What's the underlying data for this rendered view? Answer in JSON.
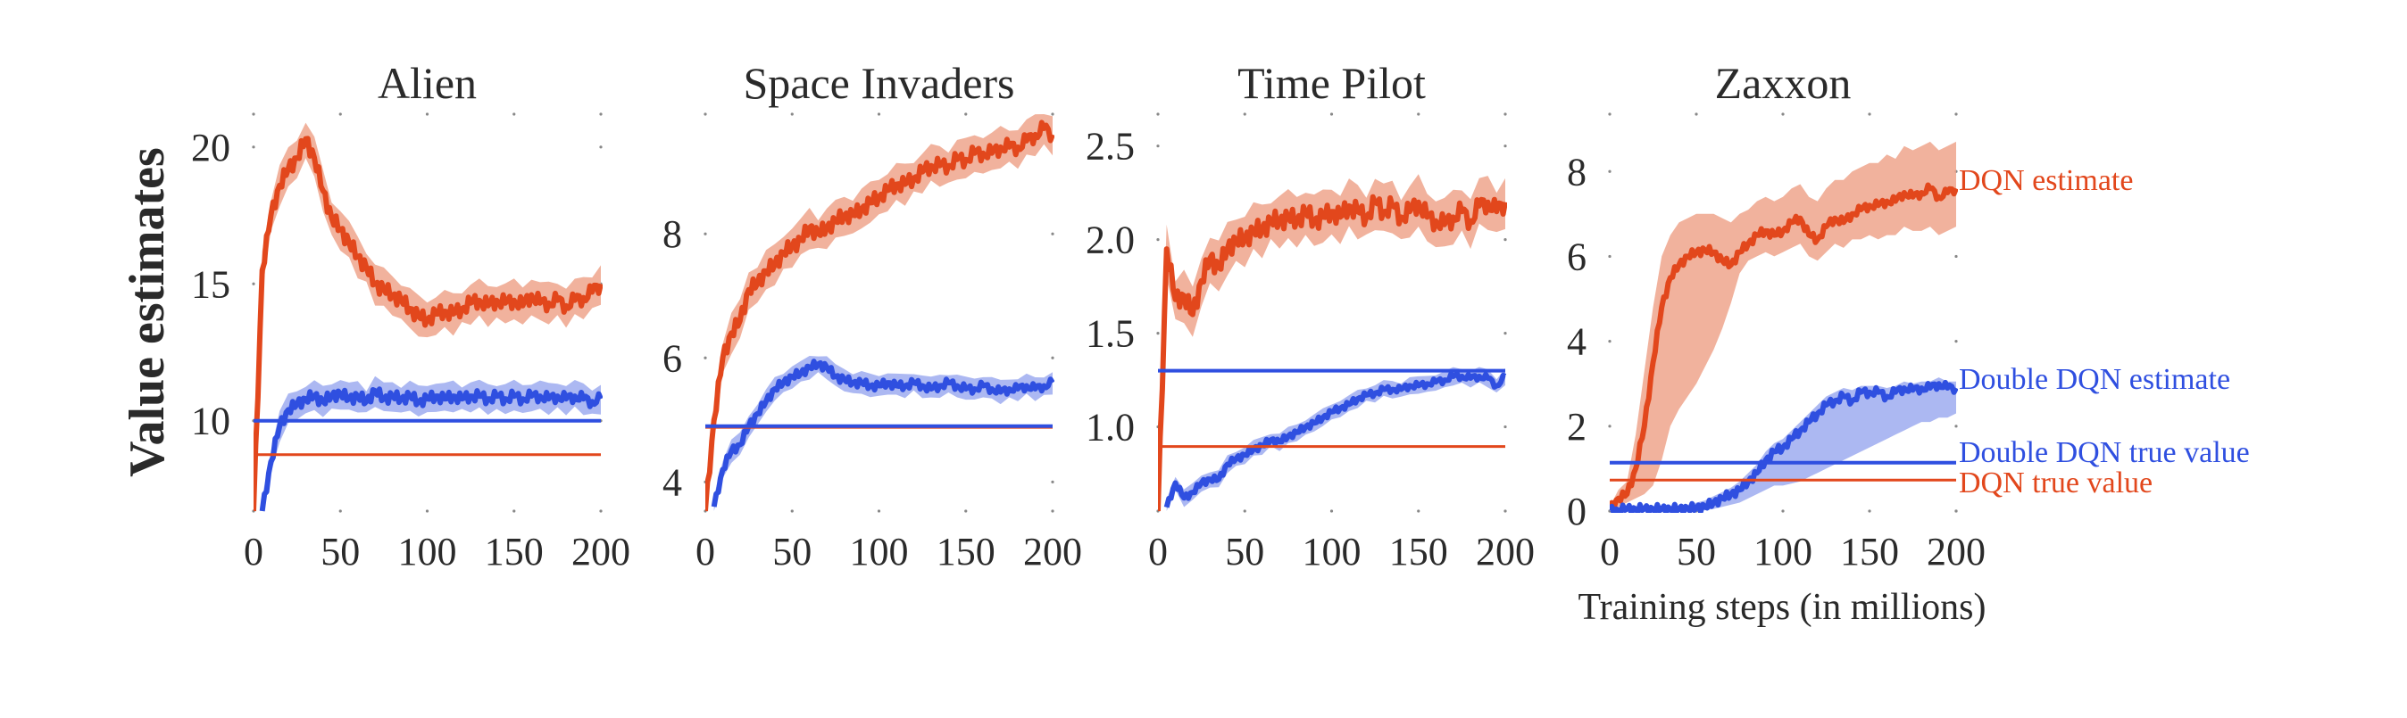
{
  "figure": {
    "ylabel": "Value estimates",
    "xlabel": "Training steps (in millions)"
  },
  "colors": {
    "dqn_line": "#e2471c",
    "dqn_band": "#eea48c",
    "ddqn_line": "#2f4fe0",
    "ddqn_band": "#9eacf0",
    "text": "#2a2a2a",
    "tick_dot": "#888888"
  },
  "legend_labels": {
    "dqn_estimate": "DQN estimate",
    "ddqn_estimate": "Double DQN estimate",
    "ddqn_true": "Double DQN true value",
    "dqn_true": "DQN true value"
  },
  "chart_data": [
    {
      "type": "line",
      "title": "Alien",
      "xlabel": "",
      "ylabel": "Value estimates",
      "xlim": [
        0,
        200
      ],
      "ylim": [
        6.7,
        21.2
      ],
      "xticks": [
        0,
        50,
        100,
        150,
        200
      ],
      "xtick_labels": [
        "0",
        "50",
        "100",
        "150",
        "200"
      ],
      "yticks": [
        10,
        15,
        20
      ],
      "ytick_labels": [
        "10",
        "15",
        "20"
      ],
      "x": [
        0,
        5,
        10,
        15,
        20,
        25,
        30,
        35,
        40,
        45,
        50,
        55,
        60,
        65,
        70,
        75,
        80,
        85,
        90,
        95,
        100,
        105,
        110,
        115,
        120,
        125,
        130,
        135,
        140,
        145,
        150,
        155,
        160,
        165,
        170,
        175,
        180,
        185,
        190,
        195,
        200
      ],
      "series": [
        {
          "name": "DQN estimate",
          "color_key": "dqn",
          "band": 0.8,
          "values": [
            6.7,
            15.5,
            17.5,
            18.6,
            19.2,
            19.6,
            20.3,
            19.6,
            18.4,
            17.4,
            17.0,
            16.5,
            16.0,
            15.6,
            15.0,
            14.8,
            14.6,
            14.4,
            14.1,
            13.8,
            13.7,
            13.9,
            14.0,
            13.9,
            14.1,
            14.3,
            14.4,
            14.2,
            14.4,
            14.3,
            14.4,
            14.2,
            14.6,
            14.3,
            14.3,
            14.4,
            14.2,
            14.4,
            14.5,
            14.7,
            15.0
          ]
        },
        {
          "name": "Double DQN estimate",
          "color_key": "ddqn",
          "band": 0.6,
          "values": [
            null,
            6.7,
            8.5,
            9.8,
            10.4,
            10.6,
            10.8,
            10.9,
            10.7,
            10.9,
            11.0,
            10.8,
            10.9,
            10.7,
            11.1,
            10.8,
            10.9,
            10.8,
            10.9,
            10.7,
            10.8,
            10.9,
            10.8,
            10.9,
            10.8,
            10.9,
            10.9,
            10.8,
            10.9,
            10.8,
            10.9,
            10.8,
            10.9,
            10.9,
            10.8,
            10.9,
            10.8,
            10.9,
            10.8,
            10.7,
            10.8
          ]
        }
      ],
      "true_values": {
        "DQN true value": 8.76,
        "Double DQN true value": 10.0
      }
    },
    {
      "type": "line",
      "title": "Space Invaders",
      "xlim": [
        0,
        200
      ],
      "ylim": [
        3.53,
        9.93
      ],
      "xticks": [
        0,
        50,
        100,
        150,
        200
      ],
      "xtick_labels": [
        "0",
        "50",
        "100",
        "150",
        "200"
      ],
      "yticks": [
        4,
        6,
        8
      ],
      "ytick_labels": [
        "4",
        "6",
        "8"
      ],
      "x": [
        0,
        5,
        10,
        15,
        20,
        25,
        30,
        35,
        40,
        45,
        50,
        55,
        60,
        65,
        70,
        75,
        80,
        85,
        90,
        95,
        100,
        105,
        110,
        115,
        120,
        125,
        130,
        135,
        140,
        145,
        150,
        155,
        160,
        165,
        170,
        175,
        180,
        185,
        190,
        195,
        200
      ],
      "series": [
        {
          "name": "DQN estimate",
          "color_key": "dqn",
          "band": 0.35,
          "values": [
            3.53,
            5.0,
            6.0,
            6.4,
            6.6,
            7.1,
            7.2,
            7.4,
            7.5,
            7.7,
            7.8,
            7.9,
            8.1,
            8.0,
            8.1,
            8.2,
            8.3,
            8.3,
            8.4,
            8.5,
            8.6,
            8.7,
            8.8,
            8.8,
            8.9,
            9.0,
            9.1,
            9.1,
            9.1,
            9.2,
            9.2,
            9.3,
            9.3,
            9.3,
            9.4,
            9.4,
            9.4,
            9.5,
            9.6,
            9.7,
            9.6
          ]
        },
        {
          "name": "Double DQN estimate",
          "color_key": "ddqn",
          "band": 0.2,
          "values": [
            null,
            3.6,
            4.2,
            4.5,
            4.6,
            4.9,
            5.1,
            5.3,
            5.5,
            5.6,
            5.7,
            5.75,
            5.85,
            5.9,
            5.85,
            5.7,
            5.65,
            5.6,
            5.6,
            5.55,
            5.55,
            5.6,
            5.55,
            5.55,
            5.6,
            5.55,
            5.5,
            5.55,
            5.6,
            5.55,
            5.5,
            5.5,
            5.55,
            5.5,
            5.45,
            5.5,
            5.5,
            5.55,
            5.5,
            5.55,
            5.6
          ]
        }
      ],
      "true_values": {
        "DQN true value": 4.88,
        "Double DQN true value": 4.9
      }
    },
    {
      "type": "line",
      "title": "Time Pilot",
      "xlim": [
        0,
        200
      ],
      "ylim": [
        0.55,
        2.67
      ],
      "xticks": [
        0,
        50,
        100,
        150,
        200
      ],
      "xtick_labels": [
        "0",
        "50",
        "100",
        "150",
        "200"
      ],
      "yticks": [
        1.0,
        1.5,
        2.0,
        2.5
      ],
      "ytick_labels": [
        "1.0",
        "1.5",
        "2.0",
        "2.5"
      ],
      "x": [
        0,
        5,
        10,
        15,
        20,
        25,
        30,
        35,
        40,
        45,
        50,
        55,
        60,
        65,
        70,
        75,
        80,
        85,
        90,
        95,
        100,
        105,
        110,
        115,
        120,
        125,
        130,
        135,
        140,
        145,
        150,
        155,
        160,
        165,
        170,
        175,
        180,
        185,
        190,
        195,
        200
      ],
      "series": [
        {
          "name": "DQN estimate",
          "color_key": "dqn",
          "band": 0.15,
          "values": [
            0.55,
            1.95,
            1.68,
            1.7,
            1.6,
            1.78,
            1.9,
            1.85,
            1.95,
            2.0,
            2.0,
            2.05,
            2.05,
            2.1,
            2.1,
            2.12,
            2.1,
            2.15,
            2.1,
            2.12,
            2.15,
            2.12,
            2.18,
            2.15,
            2.12,
            2.2,
            2.15,
            2.18,
            2.12,
            2.15,
            2.2,
            2.12,
            2.1,
            2.08,
            2.12,
            2.15,
            2.1,
            2.18,
            2.2,
            2.15,
            2.2
          ]
        },
        {
          "name": "Double DQN estimate",
          "color_key": "ddqn",
          "band": 0.05,
          "values": [
            null,
            0.57,
            0.7,
            0.62,
            0.65,
            0.7,
            0.72,
            0.72,
            0.8,
            0.83,
            0.85,
            0.88,
            0.9,
            0.93,
            0.92,
            0.95,
            0.97,
            1.0,
            1.02,
            1.05,
            1.08,
            1.1,
            1.12,
            1.15,
            1.17,
            1.18,
            1.2,
            1.2,
            1.2,
            1.22,
            1.22,
            1.23,
            1.24,
            1.25,
            1.27,
            1.27,
            1.26,
            1.27,
            1.26,
            1.22,
            1.27
          ]
        }
      ],
      "true_values": {
        "DQN true value": 0.895,
        "Double DQN true value": 1.3
      }
    },
    {
      "type": "line",
      "title": "Zaxxon",
      "xlim": [
        0,
        200
      ],
      "ylim": [
        0,
        9.35
      ],
      "xticks": [
        0,
        50,
        100,
        150,
        200
      ],
      "xtick_labels": [
        "0",
        "50",
        "100",
        "150",
        "200"
      ],
      "yticks": [
        0,
        2,
        4,
        6,
        8
      ],
      "ytick_labels": [
        "0",
        "2",
        "4",
        "6",
        "8"
      ],
      "x": [
        0,
        5,
        10,
        15,
        20,
        25,
        30,
        35,
        40,
        45,
        50,
        55,
        60,
        65,
        70,
        75,
        80,
        85,
        90,
        95,
        100,
        105,
        110,
        115,
        120,
        125,
        130,
        135,
        140,
        145,
        150,
        155,
        160,
        165,
        170,
        175,
        180,
        185,
        190,
        195,
        200
      ],
      "series": [
        {
          "name": "DQN estimate",
          "color_key": "dqn",
          "values": [
            0.05,
            0.3,
            0.4,
            1.0,
            2.0,
            3.5,
            4.8,
            5.5,
            5.8,
            6.0,
            6.1,
            6.15,
            6.1,
            5.9,
            5.8,
            6.1,
            6.3,
            6.5,
            6.6,
            6.5,
            6.6,
            6.8,
            6.9,
            6.5,
            6.4,
            6.7,
            6.9,
            6.8,
            7.0,
            7.1,
            7.2,
            7.2,
            7.3,
            7.3,
            7.5,
            7.4,
            7.5,
            7.6,
            7.4,
            7.5,
            7.6
          ],
          "lower": [
            0.0,
            0.1,
            0.2,
            0.3,
            0.4,
            0.6,
            1.2,
            2.0,
            2.4,
            2.7,
            3.0,
            3.4,
            3.8,
            4.3,
            4.9,
            5.6,
            5.9,
            6.0,
            6.1,
            6.0,
            6.1,
            6.2,
            6.3,
            6.0,
            5.9,
            6.1,
            6.3,
            6.2,
            6.4,
            6.4,
            6.5,
            6.4,
            6.5,
            6.5,
            6.7,
            6.6,
            6.6,
            6.7,
            6.5,
            6.6,
            6.7
          ],
          "upper": [
            0.1,
            0.5,
            0.7,
            1.8,
            3.3,
            4.8,
            6.0,
            6.5,
            6.8,
            6.9,
            7.0,
            7.0,
            7.0,
            6.9,
            6.8,
            7.0,
            7.1,
            7.3,
            7.4,
            7.3,
            7.4,
            7.6,
            7.7,
            7.4,
            7.3,
            7.6,
            7.8,
            7.8,
            8.0,
            8.1,
            8.2,
            8.2,
            8.4,
            8.3,
            8.6,
            8.5,
            8.6,
            8.7,
            8.5,
            8.6,
            8.7
          ]
        },
        {
          "name": "Double DQN estimate",
          "color_key": "ddqn",
          "values": [
            0.02,
            0.03,
            0.05,
            0.05,
            0.05,
            0.05,
            0.05,
            0.05,
            0.05,
            0.06,
            0.08,
            0.1,
            0.2,
            0.3,
            0.4,
            0.5,
            0.7,
            0.9,
            1.2,
            1.4,
            1.5,
            1.7,
            1.9,
            2.1,
            2.3,
            2.5,
            2.6,
            2.7,
            2.6,
            2.8,
            2.8,
            2.8,
            2.7,
            2.8,
            2.9,
            2.85,
            2.9,
            2.9,
            3.0,
            2.9,
            2.9
          ],
          "lower": [
            0.0,
            0.0,
            0.0,
            0.0,
            0.0,
            0.0,
            0.0,
            0.0,
            0.0,
            0.0,
            0.0,
            0.02,
            0.05,
            0.1,
            0.15,
            0.2,
            0.3,
            0.4,
            0.5,
            0.6,
            0.6,
            0.65,
            0.7,
            0.8,
            0.9,
            1.0,
            1.1,
            1.2,
            1.3,
            1.4,
            1.5,
            1.6,
            1.7,
            1.8,
            1.9,
            2.0,
            2.1,
            2.1,
            2.2,
            2.2,
            2.3
          ],
          "upper": [
            0.05,
            0.06,
            0.1,
            0.1,
            0.1,
            0.1,
            0.1,
            0.1,
            0.12,
            0.15,
            0.2,
            0.25,
            0.35,
            0.45,
            0.55,
            0.7,
            0.9,
            1.1,
            1.4,
            1.6,
            1.7,
            1.9,
            2.1,
            2.3,
            2.5,
            2.7,
            2.8,
            2.9,
            2.85,
            2.95,
            2.95,
            2.95,
            2.9,
            2.95,
            3.05,
            3.0,
            3.05,
            3.05,
            3.15,
            3.05,
            3.05
          ]
        }
      ],
      "true_values": {
        "DQN true value": 0.73,
        "Double DQN true value": 1.14
      },
      "annotations": [
        "DQN estimate",
        "Double DQN estimate",
        "Double DQN true value",
        "DQN true value"
      ]
    }
  ]
}
